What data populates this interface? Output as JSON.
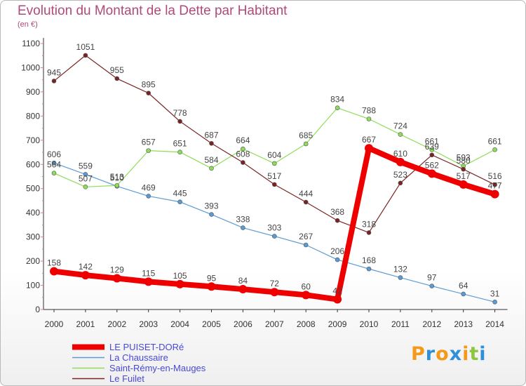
{
  "header": {
    "title": "Evolution du Montant de la Dette par Habitant",
    "unit": "(en €)"
  },
  "logo": {
    "text": "Proxiti",
    "colors": [
      "#f39a1d",
      "#2f8fd8",
      "#f39a1d",
      "#2f8fd8",
      "#f39a1d",
      "#8dc63f",
      "#2f8fd8"
    ]
  },
  "chart_data": {
    "type": "line",
    "title": "Evolution du Montant de la Dette par Habitant",
    "ylabel": "(en €)",
    "xlabel": "",
    "x": [
      "2000",
      "2001",
      "2002",
      "2003",
      "2004",
      "2005",
      "2006",
      "2007",
      "2008",
      "2009",
      "2010",
      "2011",
      "2012",
      "2013",
      "2014"
    ],
    "yticks": [
      "0",
      "100",
      "200",
      "300",
      "400",
      "500",
      "600",
      "700",
      "800",
      "900",
      "1000",
      "1100"
    ],
    "ylim": [
      0,
      1100
    ],
    "grid": false,
    "legend_position": "bottom-left",
    "series": [
      {
        "name": "LE PUISET-DORé",
        "color": "#ee0000",
        "width": 8,
        "marker": 6,
        "values": [
          158,
          142,
          129,
          115,
          105,
          95,
          84,
          72,
          60,
          42,
          667,
          610,
          562,
          517,
          477
        ]
      },
      {
        "name": "La Chaussaire",
        "color": "#5b9bd5",
        "width": 1.2,
        "marker": 3,
        "values": [
          606,
          559,
          510,
          469,
          445,
          393,
          338,
          303,
          267,
          206,
          168,
          132,
          97,
          64,
          31
        ]
      },
      {
        "name": "Saint-Rémy-en-Mauges",
        "color": "#8fdc5a",
        "width": 1.2,
        "marker": 3,
        "values": [
          564,
          507,
          513,
          657,
          651,
          584,
          664,
          604,
          685,
          834,
          788,
          724,
          661,
          593,
          661
        ]
      },
      {
        "name": "Le Fuilet",
        "color": "#7a2323",
        "width": 1.2,
        "marker": 3,
        "values": [
          945,
          1051,
          955,
          895,
          778,
          687,
          608,
          517,
          444,
          368,
          318,
          523,
          639,
          580,
          516
        ]
      }
    ]
  }
}
